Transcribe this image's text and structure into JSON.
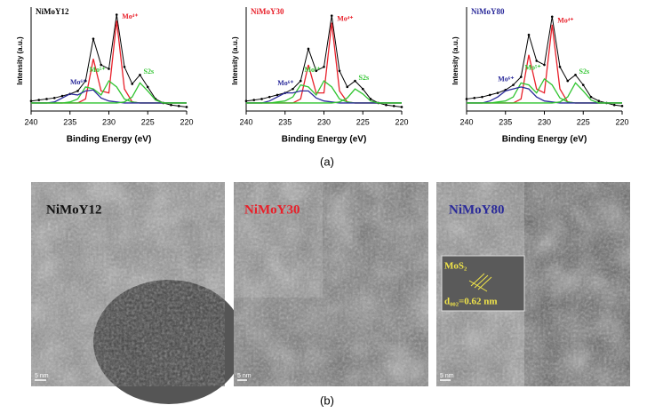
{
  "chart_data": [
    {
      "type": "line",
      "title": "NiMoY12",
      "title_color": "#000000",
      "x_label": "Binding Energy (eV)",
      "y_label": "Intensity (a.u.)",
      "x": [
        240,
        239,
        238,
        237,
        236,
        235,
        234,
        233,
        232,
        231,
        230,
        229,
        228,
        227,
        226,
        225,
        224,
        223,
        222,
        221,
        220
      ],
      "xlim": [
        240,
        220
      ],
      "xticks": [
        240,
        235,
        230,
        225,
        220
      ],
      "ylim": [
        0,
        100
      ],
      "series": [
        {
          "color": "#000000",
          "markers": true,
          "values": [
            10,
            11,
            12,
            13,
            15,
            17,
            20,
            30,
            72,
            46,
            42,
            96,
            44,
            27,
            36,
            24,
            12,
            8,
            6,
            5,
            4
          ]
        },
        {
          "name": "Mo⁴⁺",
          "color": "#e8202a",
          "values": [
            8,
            8,
            8,
            8,
            8,
            8,
            8,
            12,
            52,
            20,
            18,
            90,
            22,
            9,
            8,
            8,
            8,
            8,
            8,
            8,
            8
          ]
        },
        {
          "name": "Mo⁵⁺",
          "color": "#2fc42f",
          "values": [
            8,
            8,
            8,
            8,
            8,
            9,
            12,
            24,
            22,
            16,
            30,
            24,
            12,
            9,
            8,
            8,
            8,
            8,
            8,
            8,
            8
          ]
        },
        {
          "name": "Mo⁶⁺",
          "color": "#2a2a9a",
          "values": [
            8,
            8,
            8,
            9,
            13,
            17,
            16,
            20,
            21,
            13,
            10,
            9,
            8,
            8,
            8,
            8,
            8,
            8,
            8,
            8,
            8
          ]
        },
        {
          "name": "S2s",
          "color": "#2fc42f",
          "values": [
            8,
            8,
            8,
            8,
            8,
            8,
            8,
            8,
            8,
            8,
            8,
            8,
            9,
            14,
            28,
            20,
            11,
            8,
            8,
            8,
            8
          ]
        }
      ]
    },
    {
      "type": "line",
      "title": "NiMoY30",
      "title_color": "#e8202a",
      "x_label": "Binding Energy (eV)",
      "y_label": "Intensity (a.u.)",
      "x": [
        240,
        239,
        238,
        237,
        236,
        235,
        234,
        233,
        232,
        231,
        230,
        229,
        228,
        227,
        226,
        225,
        224,
        223,
        222,
        221,
        220
      ],
      "xlim": [
        240,
        220
      ],
      "xticks": [
        240,
        235,
        230,
        225,
        220
      ],
      "ylim": [
        0,
        100
      ],
      "series": [
        {
          "color": "#000000",
          "markers": true,
          "values": [
            10,
            11,
            12,
            14,
            16,
            18,
            22,
            30,
            62,
            40,
            44,
            95,
            40,
            24,
            30,
            22,
            12,
            8,
            6,
            5,
            4
          ]
        },
        {
          "name": "Mo⁴⁺",
          "color": "#e8202a",
          "values": [
            8,
            8,
            8,
            8,
            8,
            8,
            8,
            12,
            46,
            18,
            18,
            88,
            20,
            9,
            8,
            8,
            8,
            8,
            8,
            8,
            8
          ]
        },
        {
          "name": "Mo⁵⁺",
          "color": "#2fc42f",
          "values": [
            8,
            8,
            8,
            8,
            9,
            10,
            14,
            26,
            24,
            16,
            30,
            24,
            12,
            9,
            8,
            8,
            8,
            8,
            8,
            8,
            8
          ]
        },
        {
          "name": "Mo⁶⁺",
          "color": "#2a2a9a",
          "values": [
            8,
            8,
            8,
            10,
            14,
            18,
            18,
            20,
            20,
            13,
            10,
            9,
            8,
            8,
            8,
            8,
            8,
            8,
            8,
            8,
            8
          ]
        },
        {
          "name": "S2s",
          "color": "#2fc42f",
          "values": [
            8,
            8,
            8,
            8,
            8,
            8,
            8,
            8,
            8,
            8,
            8,
            8,
            9,
            13,
            22,
            17,
            10,
            8,
            8,
            8,
            8
          ]
        }
      ]
    },
    {
      "type": "line",
      "title": "NiMoY80",
      "title_color": "#2a2a9a",
      "x_label": "Binding Energy (eV)",
      "y_label": "Intensity (a.u.)",
      "x": [
        240,
        239,
        238,
        237,
        236,
        235,
        234,
        233,
        232,
        231,
        230,
        229,
        228,
        227,
        226,
        225,
        224,
        223,
        222,
        221,
        220
      ],
      "xlim": [
        240,
        220
      ],
      "xticks": [
        240,
        235,
        230,
        225,
        220
      ],
      "ylim": [
        0,
        100
      ],
      "series": [
        {
          "color": "#000000",
          "markers": true,
          "values": [
            12,
            13,
            14,
            16,
            18,
            21,
            26,
            34,
            76,
            50,
            46,
            94,
            44,
            30,
            36,
            26,
            14,
            10,
            8,
            6,
            5
          ]
        },
        {
          "name": "Mo⁴⁺",
          "color": "#e8202a",
          "values": [
            8,
            8,
            8,
            8,
            8,
            8,
            8,
            12,
            56,
            22,
            18,
            86,
            22,
            9,
            8,
            8,
            8,
            8,
            8,
            8,
            8
          ]
        },
        {
          "name": "Mo⁵⁺",
          "color": "#2fc42f",
          "values": [
            8,
            8,
            8,
            8,
            9,
            10,
            14,
            28,
            26,
            18,
            32,
            26,
            13,
            9,
            8,
            8,
            8,
            8,
            8,
            8,
            8
          ]
        },
        {
          "name": "Mo⁶⁺",
          "color": "#2a2a9a",
          "values": [
            8,
            8,
            8,
            10,
            14,
            20,
            22,
            24,
            22,
            14,
            10,
            9,
            8,
            8,
            8,
            8,
            8,
            8,
            8,
            8,
            8
          ]
        },
        {
          "name": "S2s",
          "color": "#2fc42f",
          "values": [
            8,
            8,
            8,
            8,
            8,
            8,
            8,
            8,
            8,
            8,
            8,
            8,
            9,
            14,
            28,
            20,
            11,
            8,
            8,
            8,
            8
          ]
        }
      ]
    }
  ],
  "panel_a_label": "(a)",
  "tem_images": [
    {
      "label": "NiMoY12",
      "scale_bar": "5 nm"
    },
    {
      "label": "NiMoY30",
      "scale_bar": "5 nm"
    },
    {
      "label": "NiMoY80",
      "scale_bar": "5 nm"
    }
  ],
  "inset": {
    "title": "MoS₂",
    "spacing": "d₀₀₂=0.62 nm"
  },
  "panel_b_label": "(b)"
}
